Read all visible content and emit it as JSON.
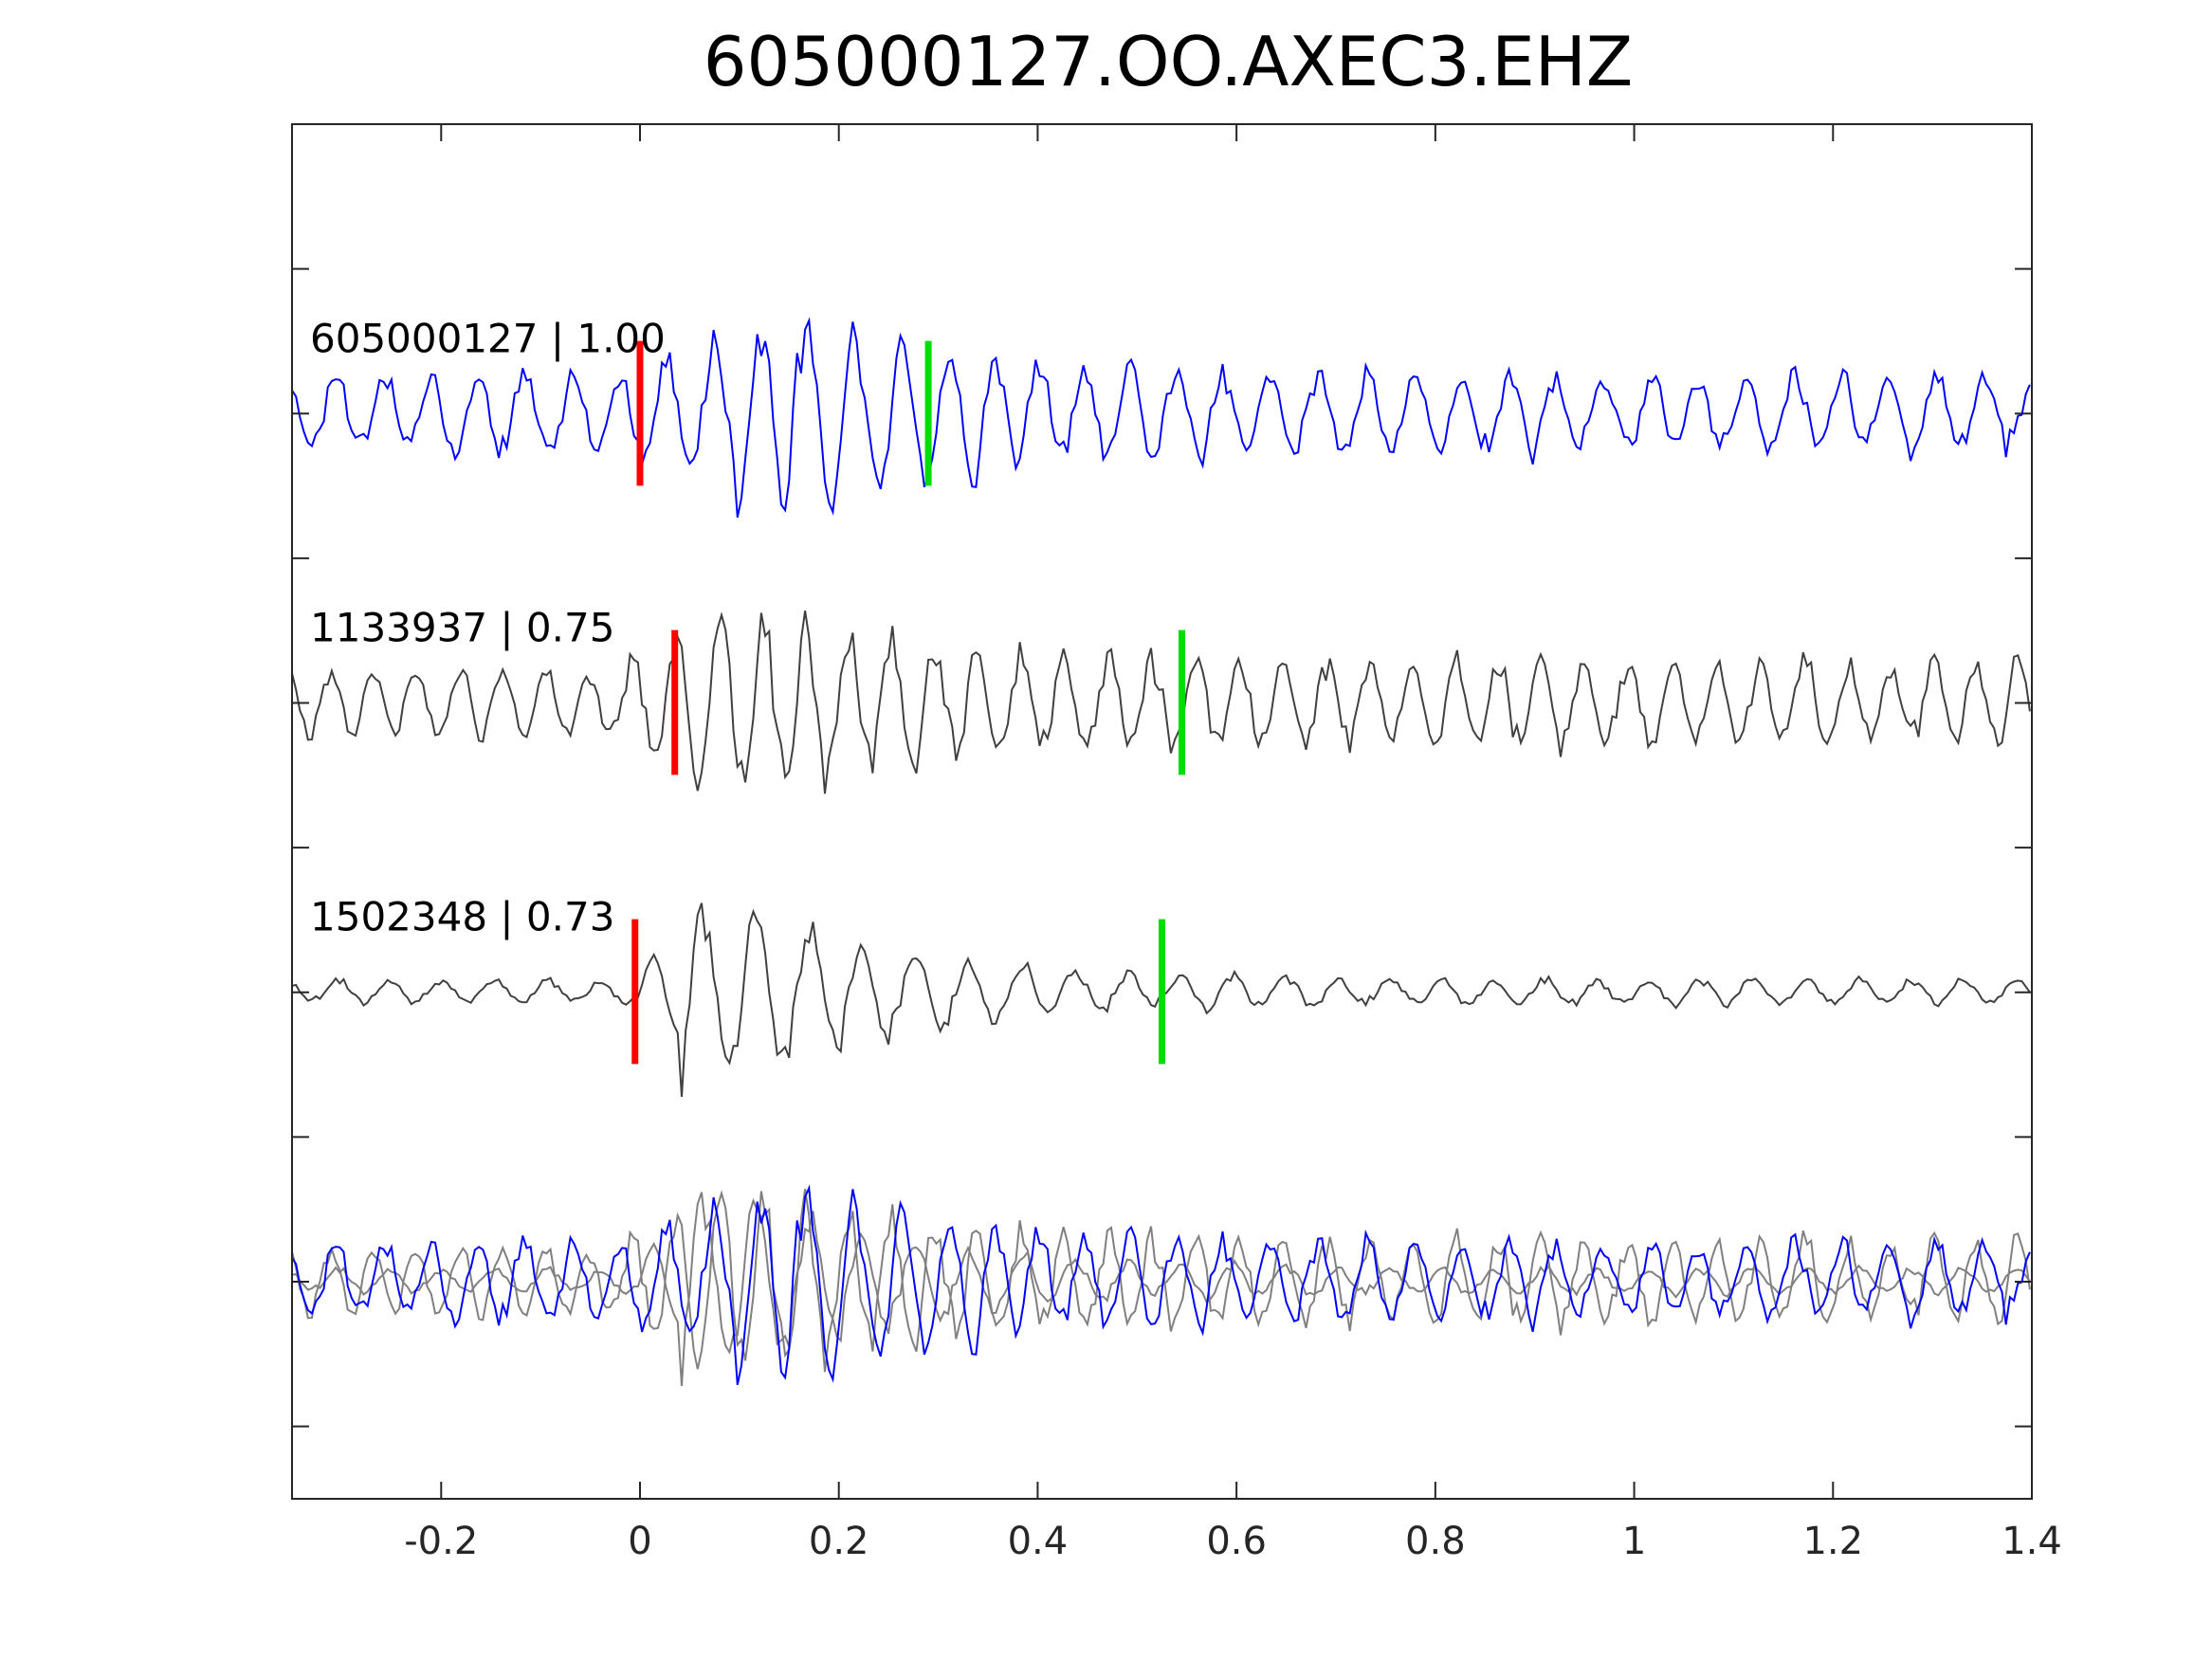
{
  "chart_data": {
    "type": "line",
    "title": "605000127.OO.AXEC3.EHZ",
    "xlabel": "",
    "ylabel": "",
    "xlim": [
      -0.35,
      1.4
    ],
    "xticks": [
      -0.2,
      0,
      0.2,
      0.4,
      0.6,
      0.8,
      1,
      1.2,
      1.4
    ],
    "xtick_labels": [
      "-0.2",
      "0",
      "0.2",
      "0.4",
      "0.6",
      "0.8",
      "1",
      "1.2",
      "1.4"
    ],
    "y_tick_count": 9,
    "grid": false,
    "legend": "none",
    "traces": [
      {
        "label": "605000127 | 1.00",
        "event_id": "605000127",
        "correlation": "1.00",
        "color": "#0000ff",
        "p_pick": 0.0,
        "s_pick": 0.29,
        "onset": 0.0,
        "peak_time": 0.145,
        "freq": 21.0,
        "pre_amp": 0.16,
        "post_amp": 0.15,
        "peak_amp": 0.42,
        "seed": 11
      },
      {
        "label": "1133937 | 0.75",
        "event_id": "1133937",
        "correlation": "0.75",
        "color": "#404040",
        "p_pick": 0.035,
        "s_pick": 0.545,
        "onset": -0.03,
        "peak_time": 0.08,
        "freq": 23.0,
        "pre_amp": 0.13,
        "post_amp": 0.17,
        "peak_amp": 0.42,
        "seed": 29
      },
      {
        "label": "1502348 | 0.73",
        "event_id": "1502348",
        "correlation": "0.73",
        "color": "#404040",
        "p_pick": -0.005,
        "s_pick": 0.525,
        "onset": -0.01,
        "peak_time": 0.05,
        "freq": 19.0,
        "pre_amp": 0.045,
        "post_amp": 0.05,
        "peak_amp": 0.42,
        "seed": 47
      }
    ],
    "overlay": {
      "colors": [
        "#808080",
        "#808080",
        "#0000ff"
      ]
    },
    "pick_colors": {
      "p": "#ff0000",
      "s": "#00dd00"
    }
  }
}
